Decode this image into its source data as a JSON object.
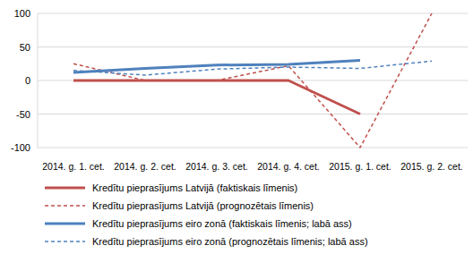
{
  "chart_data": {
    "type": "line",
    "categories": [
      "2014. g. 1. cet.",
      "2014. g. 2. cet.",
      "2014. g. 3. cet.",
      "2014. g. 4. cet.",
      "2015. g. 1. cet.",
      "2015. g. 2. cet."
    ],
    "series": [
      {
        "name": "Kredītu pieprasījums Latvijā (faktiskais līmenis)",
        "color": "#c0504d",
        "line_style": "solid",
        "values": [
          0,
          0,
          0,
          0,
          -50,
          null
        ]
      },
      {
        "name": "Kredītu pieprasījums Latvijā (prognozētais līmenis)",
        "color": "#c0504d",
        "line_style": "dashed",
        "values": [
          25,
          0,
          0,
          22,
          -100,
          100
        ]
      },
      {
        "name": "Kredītu pieprasījums eiro zonā (faktiskais līmenis; labā ass)",
        "color": "#4f81bd",
        "line_style": "solid",
        "values": [
          12,
          18,
          23,
          24,
          30,
          null
        ]
      },
      {
        "name": "Kredītu pieprasījums eiro zonā (prognozētais līmenis; labā ass)",
        "color": "#4f81bd",
        "line_style": "dashed",
        "values": [
          15,
          8,
          17,
          20,
          18,
          29
        ]
      }
    ],
    "ylim": [
      -100,
      100
    ],
    "yticks": [
      -100,
      -50,
      0,
      50,
      100
    ],
    "grid": true,
    "legend": "bottom"
  }
}
